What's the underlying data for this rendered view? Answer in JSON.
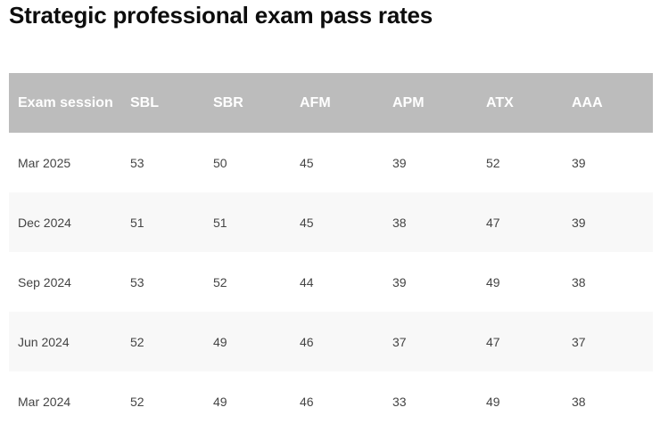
{
  "title": "Strategic professional exam pass rates",
  "table": {
    "headers": [
      "Exam session",
      "SBL",
      "SBR",
      "AFM",
      "APM",
      "ATX",
      "AAA"
    ],
    "rows": [
      [
        "Mar 2025",
        "53",
        "50",
        "45",
        "39",
        "52",
        "39"
      ],
      [
        "Dec 2024",
        "51",
        "51",
        "45",
        "38",
        "47",
        "39"
      ],
      [
        "Sep 2024",
        "53",
        "52",
        "44",
        "39",
        "49",
        "38"
      ],
      [
        "Jun 2024",
        "52",
        "49",
        "46",
        "37",
        "47",
        "37"
      ],
      [
        "Mar 2024",
        "52",
        "49",
        "46",
        "33",
        "49",
        "38"
      ]
    ]
  },
  "colors": {
    "header_background": "#bcbcbc",
    "header_text": "#ffffff",
    "striped_row": "#f8f8f8",
    "body_text": "#444444",
    "title_text": "#0d0d0d"
  }
}
